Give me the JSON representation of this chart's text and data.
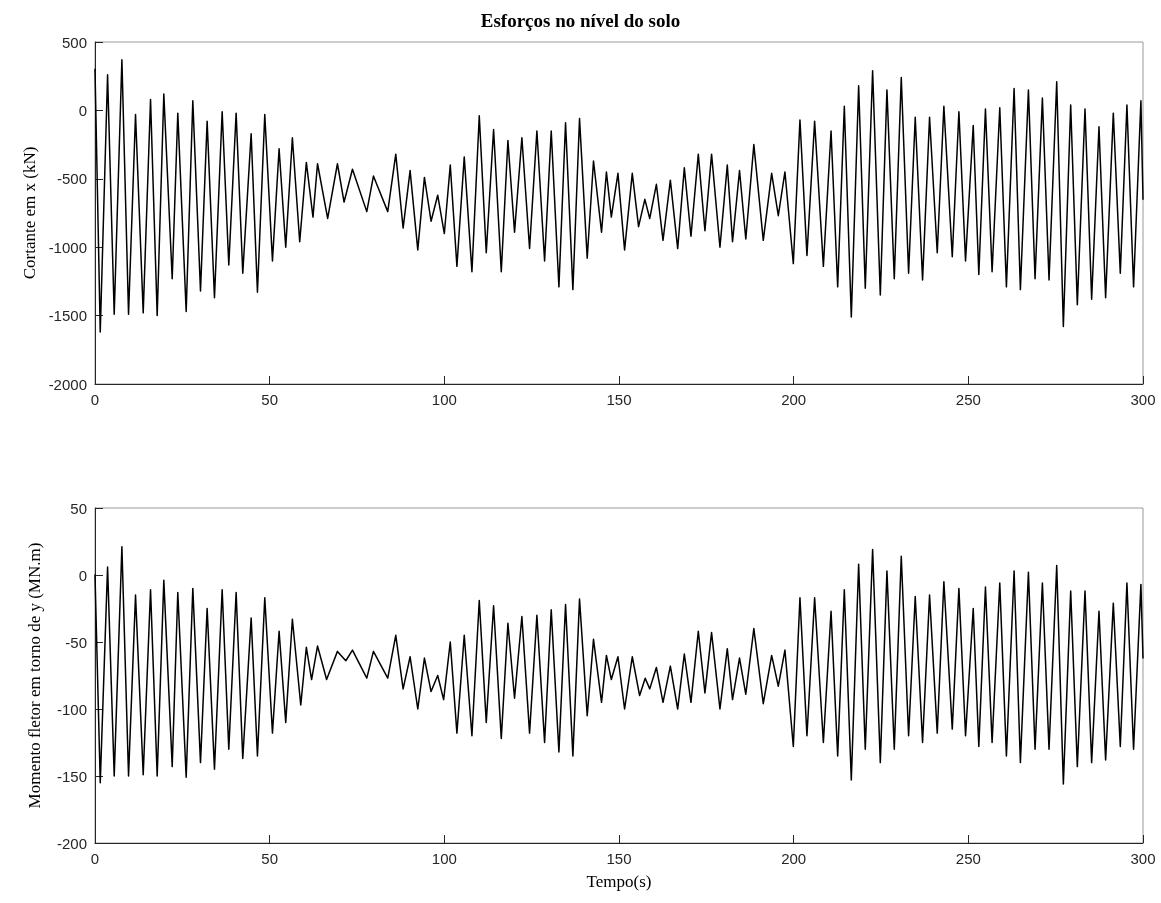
{
  "chart_data": [
    {
      "type": "line",
      "title": "Esforços no nível do solo",
      "ylabel": "Cortante em x (kN)",
      "xlim": [
        0,
        300
      ],
      "xticks": [
        0,
        50,
        100,
        150,
        200,
        250,
        300
      ],
      "ylim": [
        -2000,
        500
      ],
      "yticks": [
        -2000,
        -1500,
        -1000,
        -500,
        0,
        500
      ],
      "line_style": "solid",
      "series": [
        {
          "color": "#000000",
          "x": [
            0,
            1.5,
            3.6,
            5.5,
            7.7,
            9.6,
            11.6,
            13.8,
            15.9,
            17.8,
            19.7,
            22.1,
            23.7,
            26.1,
            28.0,
            30.2,
            32.1,
            34.2,
            36.4,
            38.3,
            40.4,
            42.3,
            44.7,
            46.5,
            48.6,
            50.8,
            52.7,
            54.6,
            56.5,
            58.6,
            60.5,
            62.4,
            63.7,
            66.6,
            69.4,
            71.3,
            73.7,
            77.8,
            79.7,
            83.8,
            86.1,
            88.2,
            90.2,
            92.4,
            94.3,
            96.2,
            98.1,
            100.0,
            101.7,
            103.6,
            105.7,
            107.9,
            110.0,
            112.0,
            114.1,
            116.3,
            118.2,
            120.1,
            122.2,
            124.4,
            126.5,
            128.7,
            130.6,
            132.8,
            134.7,
            136.8,
            138.7,
            140.9,
            142.7,
            145.0,
            146.4,
            147.8,
            149.7,
            151.6,
            153.8,
            155.6,
            157.4,
            158.8,
            160.7,
            162.6,
            164.7,
            166.8,
            168.7,
            170.6,
            172.7,
            174.6,
            176.5,
            178.9,
            181.0,
            182.5,
            184.5,
            186.3,
            188.6,
            191.3,
            193.7,
            195.6,
            197.5,
            199.9,
            201.8,
            203.8,
            206.0,
            208.5,
            210.7,
            212.6,
            214.5,
            216.5,
            218.6,
            220.5,
            222.6,
            224.8,
            226.7,
            228.8,
            230.8,
            232.9,
            234.8,
            236.9,
            238.9,
            241.1,
            243.0,
            245.4,
            247.3,
            249.2,
            251.4,
            253.0,
            254.9,
            256.8,
            259.0,
            260.9,
            263.1,
            264.9,
            267.2,
            269.1,
            271.2,
            273.1,
            275.3,
            277.2,
            279.3,
            281.2,
            283.4,
            285.3,
            287.4,
            289.3,
            291.5,
            293.5,
            295.4,
            297.3,
            299.4,
            300
          ],
          "values": [
            300,
            -1620,
            260,
            -1490,
            370,
            -1490,
            -30,
            -1480,
            80,
            -1500,
            120,
            -1230,
            -20,
            -1470,
            70,
            -1320,
            -80,
            -1370,
            -10,
            -1130,
            -20,
            -1190,
            -170,
            -1330,
            -30,
            -1100,
            -280,
            -1000,
            -200,
            -960,
            -380,
            -780,
            -390,
            -790,
            -390,
            -670,
            -430,
            -740,
            -480,
            -740,
            -320,
            -860,
            -440,
            -1020,
            -490,
            -810,
            -620,
            -900,
            -400,
            -1140,
            -340,
            -1180,
            -40,
            -1040,
            -140,
            -1180,
            -220,
            -890,
            -200,
            -1010,
            -150,
            -1100,
            -150,
            -1290,
            -90,
            -1310,
            -60,
            -1080,
            -370,
            -890,
            -450,
            -780,
            -460,
            -1020,
            -460,
            -850,
            -650,
            -790,
            -540,
            -950,
            -510,
            -1010,
            -420,
            -920,
            -320,
            -880,
            -320,
            -1000,
            -400,
            -960,
            -440,
            -940,
            -250,
            -950,
            -460,
            -770,
            -450,
            -1120,
            -70,
            -1060,
            -80,
            -1140,
            -150,
            -1290,
            30,
            -1510,
            180,
            -1300,
            290,
            -1350,
            150,
            -1230,
            240,
            -1190,
            -50,
            -1240,
            -50,
            -1040,
            30,
            -1070,
            -10,
            -1100,
            -110,
            -1200,
            10,
            -1180,
            20,
            -1290,
            160,
            -1310,
            150,
            -1230,
            90,
            -1240,
            210,
            -1580,
            40,
            -1420,
            10,
            -1380,
            -120,
            -1370,
            -20,
            -1190,
            40,
            -1290,
            70,
            -650
          ]
        }
      ]
    },
    {
      "type": "line",
      "xlabel": "Tempo(s)",
      "ylabel": "Momento fletor em torno de y (MN.m)",
      "xlim": [
        0,
        300
      ],
      "xticks": [
        0,
        50,
        100,
        150,
        200,
        250,
        300
      ],
      "ylim": [
        -200,
        50
      ],
      "yticks": [
        -200,
        -150,
        -100,
        -50,
        0,
        50
      ],
      "line_style": "solid",
      "series": [
        {
          "color": "#000000",
          "x": [
            0,
            1.5,
            3.6,
            5.5,
            7.7,
            9.6,
            11.6,
            13.8,
            15.9,
            17.8,
            19.7,
            22.1,
            23.7,
            26.1,
            28.0,
            30.2,
            32.1,
            34.2,
            36.4,
            38.3,
            40.4,
            42.3,
            44.7,
            46.5,
            48.6,
            50.8,
            52.7,
            54.6,
            56.5,
            58.9,
            60.5,
            62.0,
            63.7,
            66.3,
            69.4,
            71.8,
            73.7,
            77.8,
            79.7,
            83.8,
            86.1,
            88.2,
            90.2,
            92.4,
            94.3,
            96.2,
            98.1,
            99.8,
            101.7,
            103.6,
            105.7,
            107.9,
            110.0,
            112.0,
            114.1,
            116.3,
            118.2,
            120.1,
            122.2,
            124.4,
            126.5,
            128.7,
            130.6,
            132.8,
            134.7,
            136.8,
            138.7,
            140.9,
            142.7,
            145.0,
            146.4,
            147.8,
            149.7,
            151.6,
            153.8,
            155.9,
            157.5,
            158.8,
            160.7,
            162.6,
            164.7,
            166.8,
            168.7,
            170.6,
            172.7,
            174.6,
            176.5,
            178.9,
            181.0,
            182.5,
            184.5,
            186.3,
            188.6,
            191.3,
            193.7,
            195.6,
            197.5,
            199.9,
            201.8,
            203.8,
            206.0,
            208.5,
            210.7,
            212.6,
            214.5,
            216.5,
            218.6,
            220.5,
            222.6,
            224.8,
            226.7,
            228.8,
            230.8,
            232.9,
            234.8,
            236.9,
            238.9,
            241.1,
            243.0,
            245.4,
            247.3,
            249.2,
            251.4,
            253.0,
            254.9,
            256.8,
            259.0,
            260.9,
            263.1,
            264.9,
            267.2,
            269.1,
            271.2,
            273.1,
            275.3,
            277.2,
            279.3,
            281.2,
            283.4,
            285.3,
            287.4,
            289.3,
            291.5,
            293.5,
            295.4,
            297.3,
            299.4,
            300
          ],
          "values": [
            0,
            -155,
            6,
            -150,
            21,
            -150,
            -15,
            -149,
            -11,
            -150,
            -4,
            -143,
            -13,
            -151,
            -10,
            -140,
            -25,
            -145,
            -11,
            -130,
            -13,
            -137,
            -32,
            -135,
            -17,
            -118,
            -42,
            -110,
            -33,
            -97,
            -54,
            -78,
            -53,
            -78,
            -57,
            -64,
            -56,
            -77,
            -57,
            -77,
            -45,
            -85,
            -61,
            -100,
            -62,
            -87,
            -75,
            -93,
            -50,
            -118,
            -45,
            -120,
            -19,
            -110,
            -23,
            -122,
            -36,
            -92,
            -31,
            -118,
            -30,
            -125,
            -26,
            -132,
            -22,
            -135,
            -18,
            -105,
            -48,
            -95,
            -60,
            -78,
            -61,
            -100,
            -61,
            -90,
            -77,
            -85,
            -69,
            -95,
            -68,
            -100,
            -59,
            -95,
            -42,
            -88,
            -43,
            -100,
            -55,
            -93,
            -62,
            -89,
            -40,
            -96,
            -60,
            -83,
            -56,
            -128,
            -17,
            -120,
            -17,
            -125,
            -27,
            -135,
            -11,
            -153,
            8,
            -130,
            19,
            -140,
            3,
            -130,
            14,
            -120,
            -16,
            -125,
            -15,
            -118,
            -5,
            -115,
            -10,
            -120,
            -25,
            -128,
            -9,
            -125,
            -6,
            -135,
            3,
            -140,
            2,
            -130,
            -6,
            -130,
            7,
            -156,
            -12,
            -143,
            -12,
            -140,
            -27,
            -138,
            -21,
            -128,
            -6,
            -130,
            -7,
            -62
          ]
        }
      ]
    }
  ]
}
